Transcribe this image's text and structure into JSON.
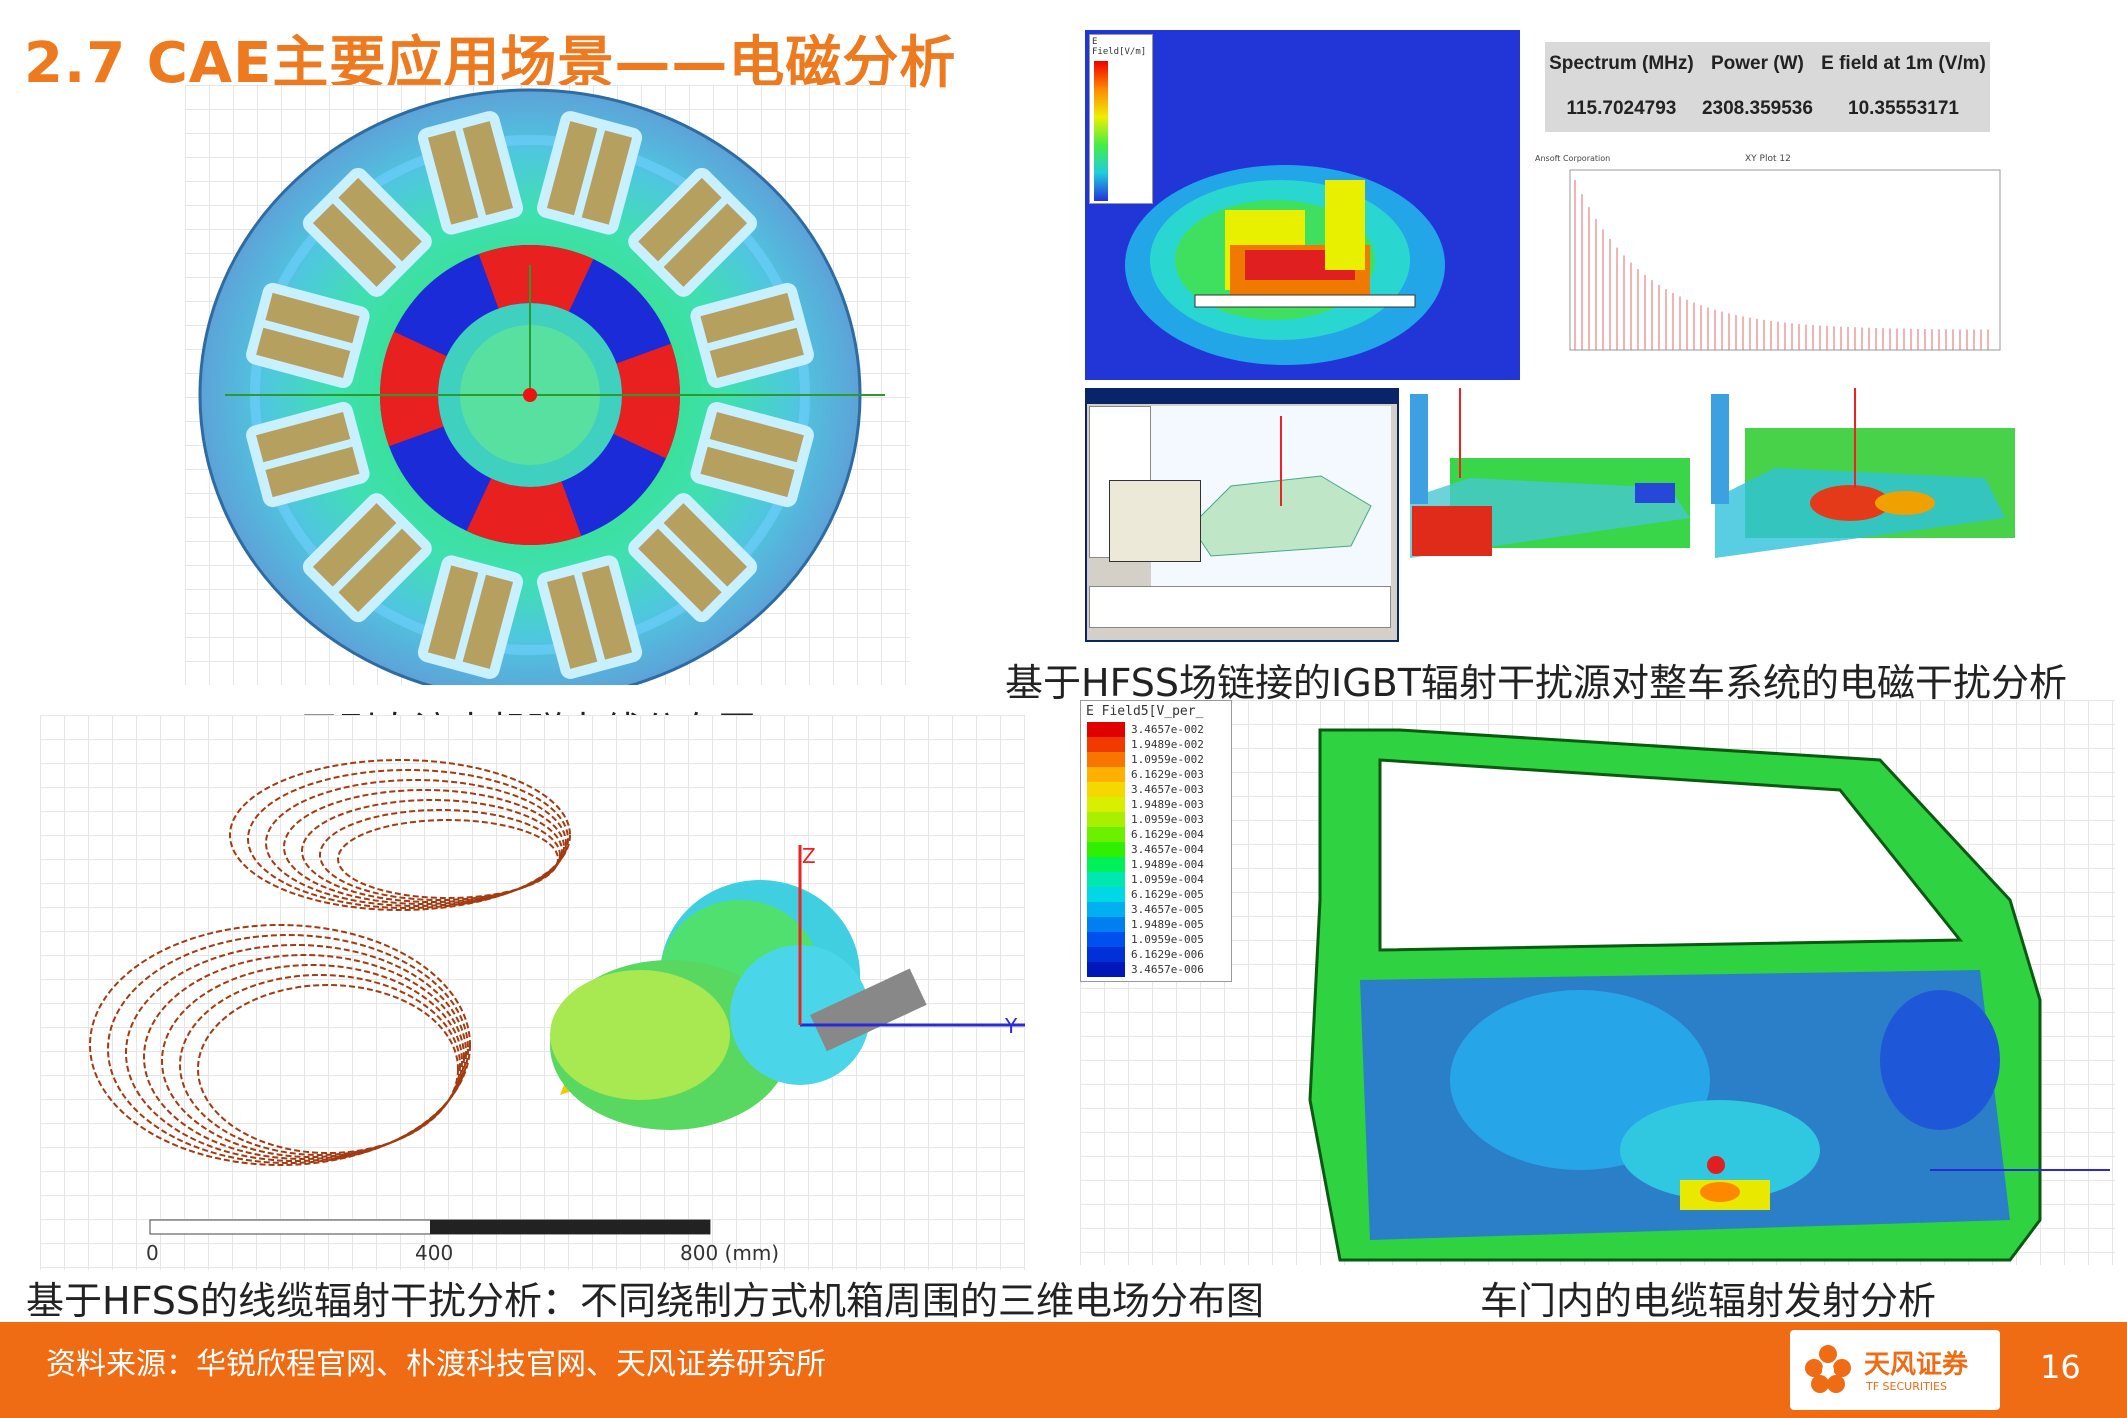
{
  "slide": {
    "title": "2.7 CAE主要应用场景——电磁分析",
    "page_number": "16"
  },
  "captions": {
    "motor": "无刷直流电机磁力线分布图",
    "igbt": "基于HFSS场链接的IGBT辐射干扰源对整车系统的电磁干扰分析",
    "cable": "基于HFSS的线缆辐射干扰分析：不同绕制方式机箱周围的三维电场分布图",
    "door": "车门内的电缆辐射发射分析"
  },
  "igbt_table": {
    "headers": [
      "Spectrum (MHz)",
      "Power (W)",
      "E field at 1m (V/m)"
    ],
    "values": [
      "115.7024793",
      "2308.359536",
      "10.35553171"
    ]
  },
  "xy_plot": {
    "title": "XY Plot 12",
    "vendor": "Ansoft Corporation"
  },
  "field_legend_small": {
    "title": "E Field[V/m]"
  },
  "door_legend": {
    "title": "E Field5[V_per_",
    "values": [
      "3.4657e-002",
      "1.9489e-002",
      "1.0959e-002",
      "6.1629e-003",
      "3.4657e-003",
      "1.9489e-003",
      "1.0959e-003",
      "6.1629e-004",
      "3.4657e-004",
      "1.9489e-004",
      "1.0959e-004",
      "6.1629e-005",
      "3.4657e-005",
      "1.9489e-005",
      "1.0959e-005",
      "6.1629e-006",
      "3.4657e-006"
    ],
    "colors": [
      "#e10000",
      "#f03a00",
      "#f87500",
      "#ffb000",
      "#f5d800",
      "#d8f000",
      "#a8f000",
      "#6cf000",
      "#2ef000",
      "#00f05a",
      "#00e8b0",
      "#00d8e8",
      "#00b0f0",
      "#0080f0",
      "#0050f0",
      "#0030d8",
      "#0018b8"
    ]
  },
  "cable_scale": {
    "labels": [
      "0",
      "400",
      "800 (mm)"
    ]
  },
  "axis_labels": {
    "z": "Z",
    "y": "Y"
  },
  "footer": {
    "source": "资料来源：华锐欣程官网、朴渡科技官网、天风证券研究所",
    "logo_text": "天风证券",
    "logo_sub": "TF SECURITIES"
  }
}
